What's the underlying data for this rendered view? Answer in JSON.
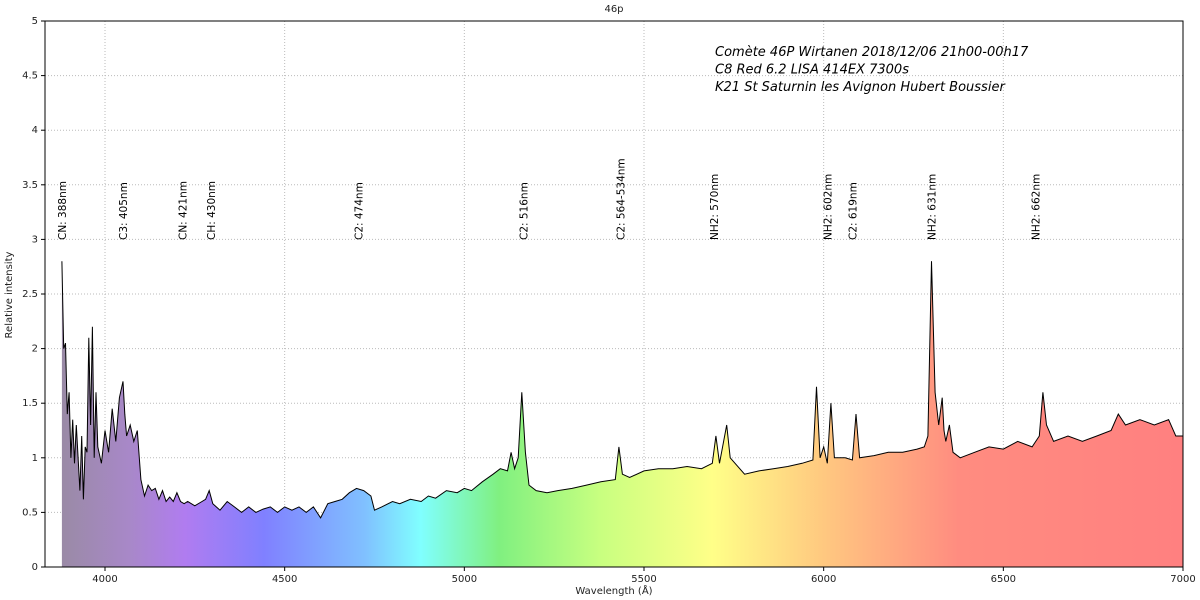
{
  "chart_data": {
    "type": "line",
    "title": "46p",
    "x_label": "Wavelength (Å)",
    "y_label": "Relative intensity",
    "note_lines": [
      "Comète 46P Wirtanen 2018/12/06 21h00-00h17",
      "C8 Red 6.2 LISA 414EX  7300s",
      "K21 St Saturnin les Avignon Hubert Boussier"
    ],
    "annotations": [
      {
        "text": "CN: 388nm",
        "x": 3880
      },
      {
        "text": "C3: 405nm",
        "x": 4050
      },
      {
        "text": "CN: 421nm",
        "x": 4215
      },
      {
        "text": "CH: 430nm",
        "x": 4295
      },
      {
        "text": "C2: 474nm",
        "x": 4705
      },
      {
        "text": "C2: 516nm",
        "x": 5165
      },
      {
        "text": "C2: 564-534nm",
        "x": 5435
      },
      {
        "text": "NH2: 570nm",
        "x": 5695
      },
      {
        "text": "NH2: 602nm",
        "x": 6010
      },
      {
        "text": "C2: 619nm",
        "x": 6080
      },
      {
        "text": "NH2: 631nm",
        "x": 6300
      },
      {
        "text": "NH2: 662nm",
        "x": 6590
      }
    ],
    "color": "#000000",
    "grid": true,
    "xlim": [
      3833,
      7000
    ],
    "ylim": [
      0,
      5
    ],
    "xticks": [
      4000,
      4500,
      5000,
      5500,
      6000,
      6500,
      7000
    ],
    "yticks": [
      0,
      0.5,
      1,
      1.5,
      2,
      2.5,
      3,
      3.5,
      4,
      4.5,
      5
    ],
    "x": [
      3880,
      3885,
      3890,
      3895,
      3900,
      3905,
      3910,
      3915,
      3920,
      3930,
      3935,
      3940,
      3945,
      3950,
      3955,
      3960,
      3965,
      3970,
      3975,
      3980,
      3990,
      4000,
      4010,
      4020,
      4030,
      4040,
      4050,
      4055,
      4060,
      4070,
      4080,
      4090,
      4100,
      4110,
      4120,
      4130,
      4140,
      4150,
      4160,
      4170,
      4180,
      4190,
      4200,
      4210,
      4220,
      4230,
      4250,
      4270,
      4280,
      4290,
      4300,
      4320,
      4340,
      4360,
      4380,
      4400,
      4420,
      4440,
      4460,
      4480,
      4500,
      4520,
      4540,
      4560,
      4580,
      4600,
      4620,
      4640,
      4660,
      4680,
      4700,
      4720,
      4740,
      4750,
      4770,
      4800,
      4820,
      4850,
      4880,
      4900,
      4920,
      4950,
      4980,
      5000,
      5020,
      5050,
      5080,
      5100,
      5120,
      5130,
      5140,
      5150,
      5160,
      5170,
      5180,
      5200,
      5230,
      5260,
      5300,
      5340,
      5380,
      5420,
      5430,
      5440,
      5460,
      5500,
      5540,
      5580,
      5620,
      5660,
      5690,
      5700,
      5710,
      5730,
      5740,
      5780,
      5820,
      5860,
      5900,
      5940,
      5970,
      5980,
      5990,
      6000,
      6010,
      6020,
      6030,
      6060,
      6080,
      6090,
      6100,
      6140,
      6180,
      6220,
      6260,
      6280,
      6290,
      6300,
      6310,
      6320,
      6330,
      6335,
      6340,
      6350,
      6360,
      6380,
      6420,
      6460,
      6500,
      6540,
      6580,
      6600,
      6610,
      6620,
      6640,
      6680,
      6720,
      6760,
      6800,
      6820,
      6840,
      6880,
      6920,
      6960,
      6980,
      7000
    ],
    "values": [
      2.8,
      2.0,
      2.05,
      1.4,
      1.6,
      1.0,
      1.35,
      0.95,
      1.3,
      0.7,
      1.2,
      0.62,
      1.1,
      1.05,
      2.1,
      1.3,
      2.2,
      1.0,
      1.6,
      1.1,
      0.95,
      1.25,
      1.05,
      1.45,
      1.15,
      1.55,
      1.7,
      1.4,
      1.2,
      1.3,
      1.15,
      1.25,
      0.8,
      0.65,
      0.75,
      0.7,
      0.72,
      0.62,
      0.7,
      0.6,
      0.64,
      0.6,
      0.68,
      0.6,
      0.58,
      0.6,
      0.56,
      0.6,
      0.62,
      0.7,
      0.58,
      0.52,
      0.6,
      0.55,
      0.5,
      0.55,
      0.5,
      0.53,
      0.55,
      0.5,
      0.55,
      0.52,
      0.55,
      0.5,
      0.55,
      0.45,
      0.58,
      0.6,
      0.62,
      0.68,
      0.72,
      0.7,
      0.65,
      0.52,
      0.55,
      0.6,
      0.58,
      0.62,
      0.6,
      0.65,
      0.63,
      0.7,
      0.68,
      0.72,
      0.7,
      0.78,
      0.85,
      0.9,
      0.88,
      1.05,
      0.9,
      1.0,
      1.6,
      1.05,
      0.75,
      0.7,
      0.68,
      0.7,
      0.72,
      0.75,
      0.78,
      0.8,
      1.1,
      0.85,
      0.82,
      0.88,
      0.9,
      0.9,
      0.92,
      0.9,
      0.95,
      1.2,
      0.95,
      1.3,
      1.0,
      0.85,
      0.88,
      0.9,
      0.92,
      0.95,
      0.98,
      1.65,
      1.0,
      1.1,
      0.95,
      1.5,
      1.0,
      1.0,
      0.98,
      1.4,
      1.0,
      1.02,
      1.05,
      1.05,
      1.08,
      1.1,
      1.2,
      2.8,
      1.6,
      1.3,
      1.55,
      1.25,
      1.15,
      1.3,
      1.05,
      1.0,
      1.05,
      1.1,
      1.08,
      1.15,
      1.1,
      1.2,
      1.6,
      1.3,
      1.15,
      1.2,
      1.15,
      1.2,
      1.25,
      1.4,
      1.3,
      1.35,
      1.3,
      1.35,
      1.2,
      1.2
    ]
  }
}
